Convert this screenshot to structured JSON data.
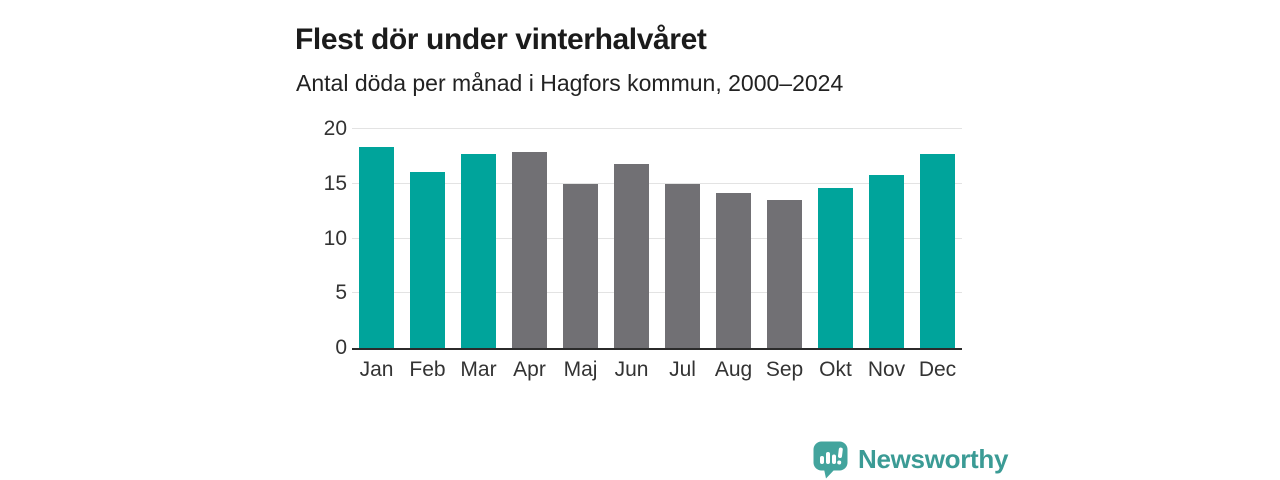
{
  "chart_data": {
    "type": "bar",
    "title": "Flest dör under vinterhalvåret",
    "subtitle": "Antal döda per månad i Hagfors kommun, 2000–2024",
    "categories": [
      "Jan",
      "Feb",
      "Mar",
      "Apr",
      "Maj",
      "Jun",
      "Jul",
      "Aug",
      "Sep",
      "Okt",
      "Nov",
      "Dec"
    ],
    "values": [
      18.4,
      16.1,
      17.7,
      17.9,
      15.0,
      16.8,
      15.0,
      14.2,
      13.5,
      14.6,
      15.8,
      17.7
    ],
    "bar_colors": [
      "teal",
      "teal",
      "teal",
      "gray",
      "gray",
      "gray",
      "gray",
      "gray",
      "gray",
      "teal",
      "teal",
      "teal"
    ],
    "colors": {
      "teal": "#00a49b",
      "gray": "#717074"
    },
    "xlabel": "",
    "ylabel": "",
    "ylim": [
      0,
      20
    ],
    "yticks": [
      0,
      5,
      10,
      15,
      20
    ],
    "grid": "horizontal",
    "legend": "none"
  },
  "branding": {
    "logo_text": "Newsworthy",
    "logo_color": "#3b9b95",
    "icon_color": "#43a49d",
    "icon": "newsworthy-logo-icon"
  }
}
